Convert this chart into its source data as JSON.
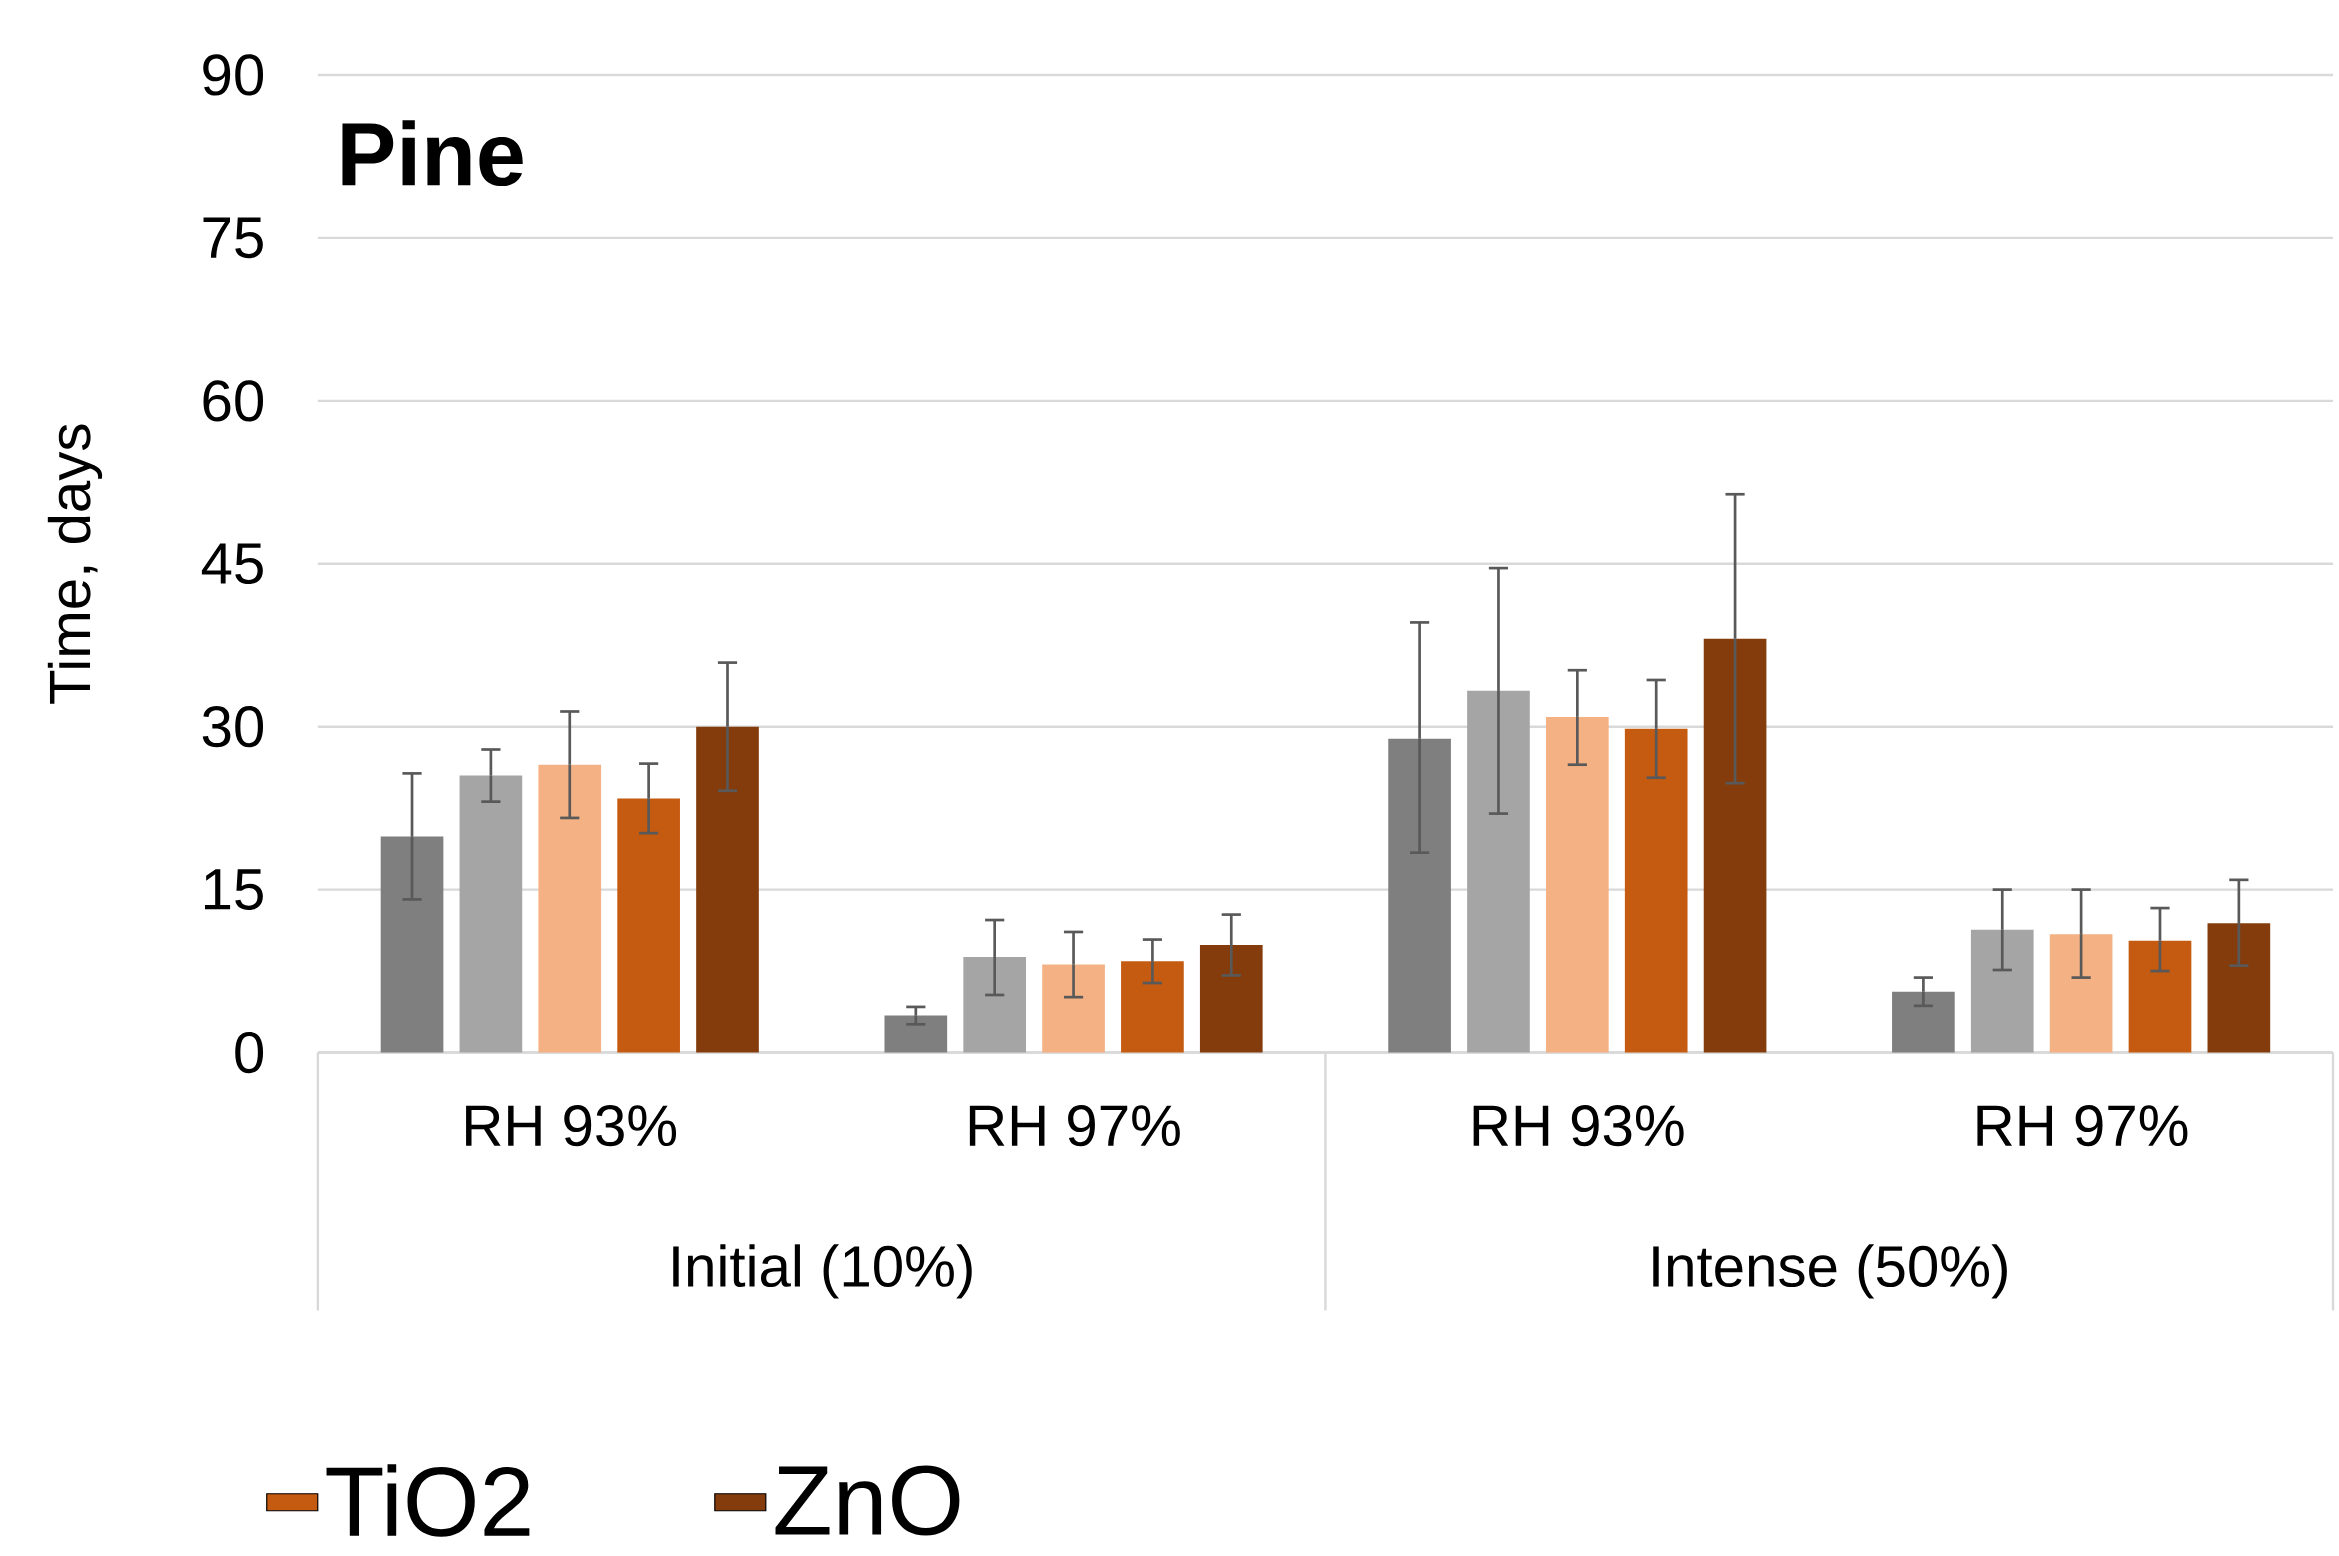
{
  "chart_data": {
    "type": "bar",
    "title": "Pine",
    "ylabel": "Time, days",
    "categories": [
      "RH 93%",
      "RH 97%",
      "RH 93%",
      "RH 97%"
    ],
    "annotations": [
      "Initial (10%)",
      "Intense (50%)"
    ],
    "ylim": [
      0,
      90
    ],
    "yticks": [
      0,
      15,
      30,
      45,
      60,
      75,
      90
    ],
    "grid": "y",
    "legend": "bottom",
    "series": [
      {
        "color": "#7f7f7f",
        "values": [
          19.9,
          3.4,
          28.9,
          5.6
        ],
        "errors": [
          [
            14.1,
            25.7
          ],
          [
            2.6,
            4.2
          ],
          [
            18.4,
            39.6
          ],
          [
            4.3,
            6.9
          ]
        ]
      },
      {
        "color": "#a5a5a5",
        "values": [
          25.5,
          8.8,
          33.3,
          11.3
        ],
        "errors": [
          [
            23.1,
            27.9
          ],
          [
            5.3,
            12.2
          ],
          [
            22.0,
            44.6
          ],
          [
            7.6,
            15.0
          ]
        ]
      },
      {
        "color": "#f4b183",
        "values": [
          26.5,
          8.1,
          30.9,
          10.9
        ],
        "errors": [
          [
            21.6,
            31.4
          ],
          [
            5.1,
            11.1
          ],
          [
            26.5,
            35.2
          ],
          [
            6.9,
            15.0
          ]
        ]
      },
      {
        "name": "TiO2",
        "color": "#c55a11",
        "values": [
          23.4,
          8.4,
          29.8,
          10.3
        ],
        "errors": [
          [
            20.2,
            26.6
          ],
          [
            6.4,
            10.4
          ],
          [
            25.3,
            34.3
          ],
          [
            7.5,
            13.3
          ]
        ]
      },
      {
        "name": "ZnO",
        "color": "#843c0c",
        "values": [
          30.0,
          9.9,
          38.1,
          11.9
        ],
        "errors": [
          [
            24.1,
            35.9
          ],
          [
            7.1,
            12.7
          ],
          [
            24.8,
            51.4
          ],
          [
            8.0,
            15.9
          ]
        ]
      }
    ]
  }
}
